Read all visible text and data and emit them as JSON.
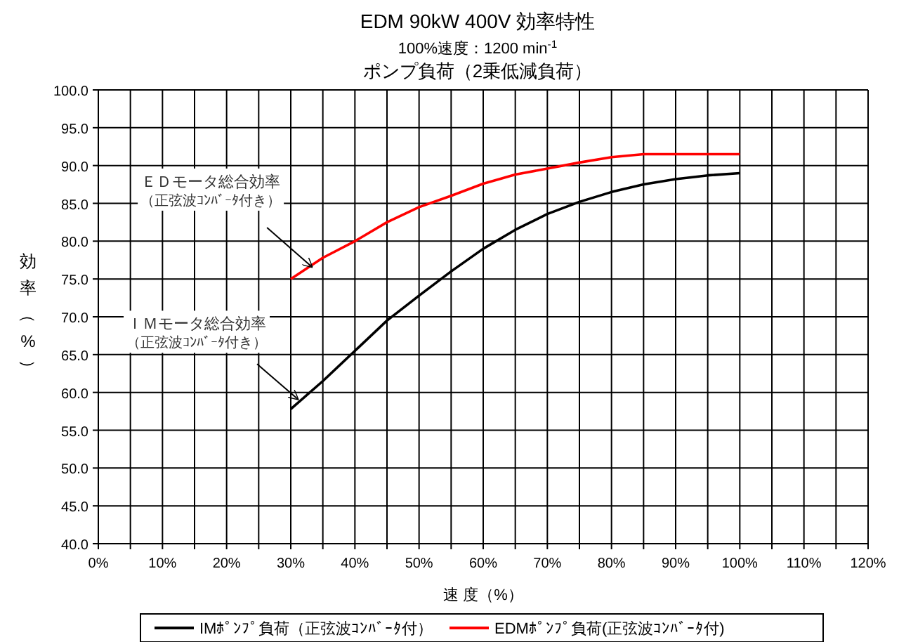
{
  "chart_data": {
    "type": "line",
    "title": "EDM 90kW 400V 効率特性",
    "subtitle": "100%速度：1200 min$^{-1}$\nポンプ負荷（2乗低減負荷）",
    "xlabel": "速 度（%）",
    "ylabel": "効率（%）",
    "x": [
      30,
      35,
      40,
      45,
      50,
      55,
      60,
      65,
      70,
      75,
      80,
      85,
      90,
      95,
      100
    ],
    "series": [
      {
        "name": "IMﾎﾟﾝﾌﾟ負荷（正弦波ｺﾝﾊﾞｰﾀ付）",
        "color": "#000000",
        "values": [
          57.8,
          61.5,
          65.5,
          69.5,
          72.8,
          76,
          79,
          81.5,
          83.6,
          85.2,
          86.5,
          87.5,
          88.2,
          88.7,
          89
        ]
      },
      {
        "name": "EDMﾎﾟﾝﾌﾟ負荷(正弦波ｺﾝﾊﾞｰﾀ付)",
        "color": "#ff0000",
        "values": [
          75,
          77.8,
          80,
          82.5,
          84.5,
          86,
          87.6,
          88.8,
          89.6,
          90.4,
          91.1,
          91.5,
          91.5,
          91.5,
          91.5
        ]
      }
    ],
    "xlim": [
      0,
      120
    ],
    "xticks": [
      {
        "value": 0,
        "label": "0%"
      },
      {
        "value": 5,
        "label": null
      },
      {
        "value": 10,
        "label": "10%"
      },
      {
        "value": 15,
        "label": null
      },
      {
        "value": 20,
        "label": "20%"
      },
      {
        "value": 25,
        "label": null
      },
      {
        "value": 30,
        "label": "30%"
      },
      {
        "value": 35,
        "label": null
      },
      {
        "value": 40,
        "label": "40%"
      },
      {
        "value": 45,
        "label": null
      },
      {
        "value": 50,
        "label": "50%"
      },
      {
        "value": 55,
        "label": null
      },
      {
        "value": 60,
        "label": "60%"
      },
      {
        "value": 65,
        "label": null
      },
      {
        "value": 70,
        "label": "70%"
      },
      {
        "value": 75,
        "label": null
      },
      {
        "value": 80,
        "label": "80%"
      },
      {
        "value": 85,
        "label": null
      },
      {
        "value": 90,
        "label": "90%"
      },
      {
        "value": 95,
        "label": null
      },
      {
        "value": 100,
        "label": "100%"
      },
      {
        "value": 105,
        "label": null
      },
      {
        "value": 110,
        "label": "110%"
      },
      {
        "value": 115,
        "label": null
      },
      {
        "value": 120,
        "label": "120%"
      }
    ],
    "ylim": [
      40,
      100
    ],
    "yticks": [
      {
        "value": 40,
        "label": "40.0"
      },
      {
        "value": 45,
        "label": "45.0"
      },
      {
        "value": 50,
        "label": "50.0"
      },
      {
        "value": 55,
        "label": "55.0"
      },
      {
        "value": 60,
        "label": "60.0"
      },
      {
        "value": 65,
        "label": "65.0"
      },
      {
        "value": 70,
        "label": "70.0"
      },
      {
        "value": 75,
        "label": "75.0"
      },
      {
        "value": 80,
        "label": "80.0"
      },
      {
        "value": 85,
        "label": "85.0"
      },
      {
        "value": 90,
        "label": "90.0"
      },
      {
        "value": 95,
        "label": "95.0"
      },
      {
        "value": 100,
        "label": "100.0"
      }
    ],
    "grid": true,
    "legend": "bottom",
    "line_style": "solid",
    "marker": "none",
    "annotations": [
      {
        "text": "ＥＤモータ総合効率（正弦波ｺﾝﾊﾞｰﾀ付き）",
        "x": 33.3,
        "y": 76.6
      },
      {
        "text": "ＩＭモータ総合効率（正弦波ｺﾝﾊﾞｰﾀ付き）",
        "x": 31.1,
        "y": 59.1
      }
    ]
  }
}
